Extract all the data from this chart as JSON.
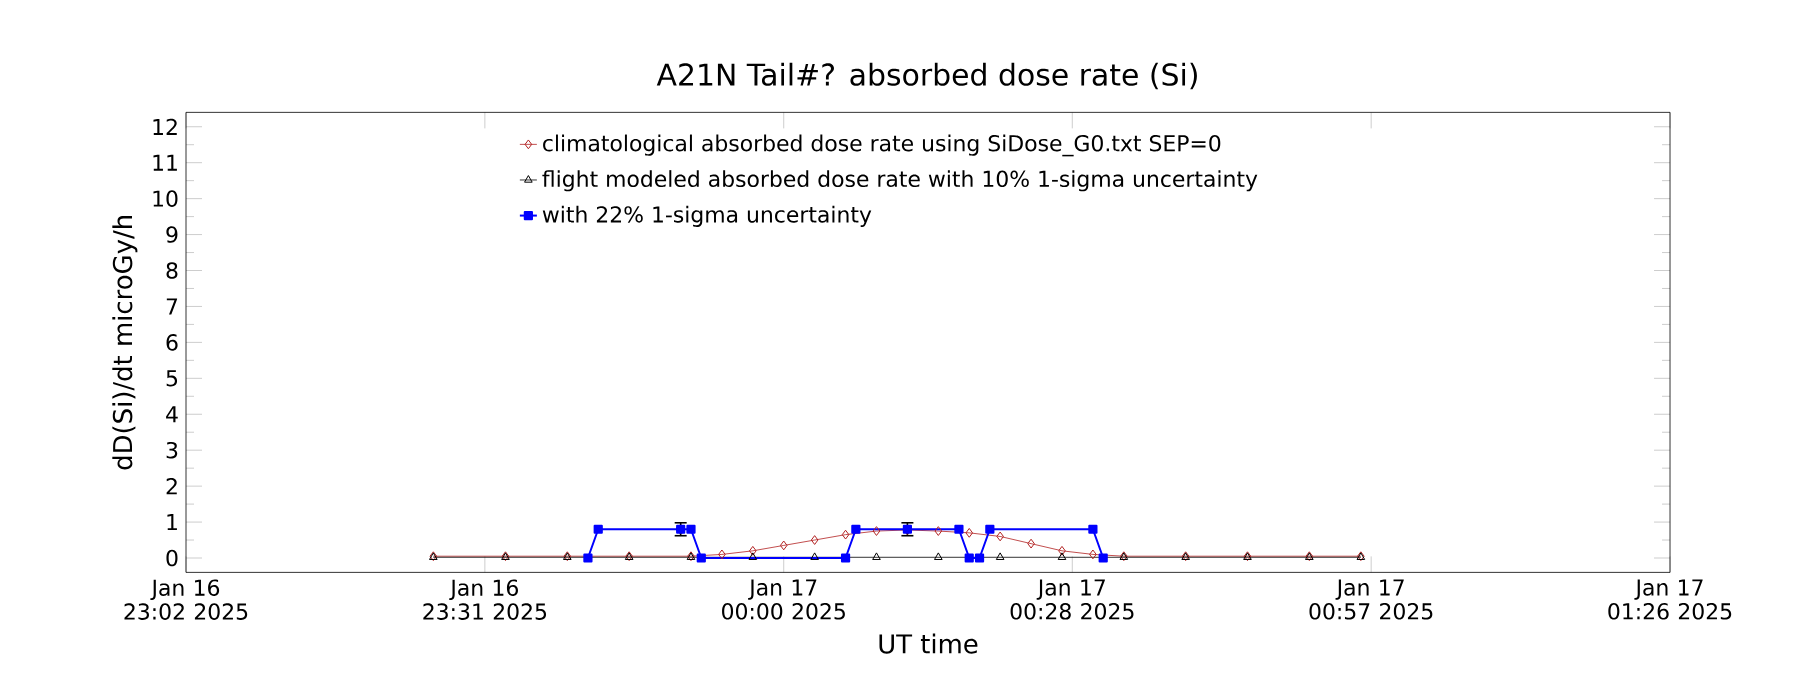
{
  "chart_data": {
    "type": "line",
    "title": "A21N Tail#? absorbed dose rate (Si)",
    "xlabel": "UT time",
    "ylabel": "dD(Si)/dt microGy/h",
    "xlim": [
      "2025-01-16T23:02",
      "2025-01-17T01:26"
    ],
    "xticks": [
      {
        "value": "2025-01-16T23:02",
        "label": "Jan 16 23:02 2025"
      },
      {
        "value": "2025-01-16T23:31",
        "label": "Jan 16 23:31 2025"
      },
      {
        "value": "2025-01-17T00:00",
        "label": "Jan 17 00:00 2025"
      },
      {
        "value": "2025-01-17T00:28",
        "label": "Jan 17 00:28 2025"
      },
      {
        "value": "2025-01-17T00:57",
        "label": "Jan 17 00:57 2025"
      },
      {
        "value": "2025-01-17T01:26",
        "label": "Jan 17 01:26 2025"
      }
    ],
    "ylim": [
      -0.4,
      12.4
    ],
    "yticks": [
      0,
      1,
      2,
      3,
      4,
      5,
      6,
      7,
      8,
      9,
      10,
      11,
      12
    ],
    "legend": "top",
    "grid": false,
    "series": [
      {
        "name": "climatological absorbed dose rate using SiDose_G0.txt SEP=0",
        "color": "#b22222",
        "marker": "diamond",
        "x": [
          "2025-01-16T23:26",
          "2025-01-16T23:33",
          "2025-01-16T23:39",
          "2025-01-16T23:45",
          "2025-01-16T23:51",
          "2025-01-16T23:54",
          "2025-01-16T23:57",
          "2025-01-17T00:00",
          "2025-01-17T00:03",
          "2025-01-17T00:06",
          "2025-01-17T00:09",
          "2025-01-17T00:12",
          "2025-01-17T00:15",
          "2025-01-17T00:18",
          "2025-01-17T00:21",
          "2025-01-17T00:24",
          "2025-01-17T00:27",
          "2025-01-17T00:30",
          "2025-01-17T00:33",
          "2025-01-17T00:39",
          "2025-01-17T00:45",
          "2025-01-17T00:51",
          "2025-01-17T00:56"
        ],
        "values": [
          0.05,
          0.05,
          0.05,
          0.05,
          0.05,
          0.1,
          0.2,
          0.35,
          0.5,
          0.65,
          0.75,
          0.78,
          0.75,
          0.7,
          0.6,
          0.4,
          0.2,
          0.1,
          0.05,
          0.05,
          0.05,
          0.05,
          0.05
        ]
      },
      {
        "name": "flight modeled absorbed dose rate with 10% 1-sigma uncertainty",
        "color": "#000000",
        "marker": "triangle",
        "x": [
          "2025-01-16T23:26",
          "2025-01-16T23:33",
          "2025-01-16T23:39",
          "2025-01-16T23:45",
          "2025-01-16T23:51",
          "2025-01-16T23:57",
          "2025-01-17T00:03",
          "2025-01-17T00:09",
          "2025-01-17T00:15",
          "2025-01-17T00:21",
          "2025-01-17T00:27",
          "2025-01-17T00:33",
          "2025-01-17T00:39",
          "2025-01-17T00:45",
          "2025-01-17T00:51",
          "2025-01-17T00:56"
        ],
        "values": [
          0.02,
          0.02,
          0.02,
          0.02,
          0.02,
          0.02,
          0.02,
          0.02,
          0.02,
          0.02,
          0.02,
          0.02,
          0.02,
          0.02,
          0.02,
          0.02
        ]
      },
      {
        "name": "with 22% 1-sigma uncertainty",
        "color": "#0000ff",
        "marker": "square",
        "x": [
          "2025-01-16T23:41",
          "2025-01-16T23:42",
          "2025-01-16T23:50",
          "2025-01-16T23:51",
          "2025-01-16T23:52",
          "2025-01-17T00:06",
          "2025-01-17T00:07",
          "2025-01-17T00:12",
          "2025-01-17T00:17",
          "2025-01-17T00:18",
          "2025-01-17T00:19",
          "2025-01-17T00:20",
          "2025-01-17T00:30",
          "2025-01-17T00:31"
        ],
        "values": [
          0,
          0.8,
          0.8,
          0.8,
          0,
          0,
          0.8,
          0.8,
          0.8,
          0,
          0,
          0.8,
          0.8,
          0
        ],
        "errors": [
          null,
          null,
          0.18,
          null,
          null,
          null,
          null,
          0.18,
          null,
          null,
          null,
          null,
          null,
          null
        ]
      }
    ]
  }
}
